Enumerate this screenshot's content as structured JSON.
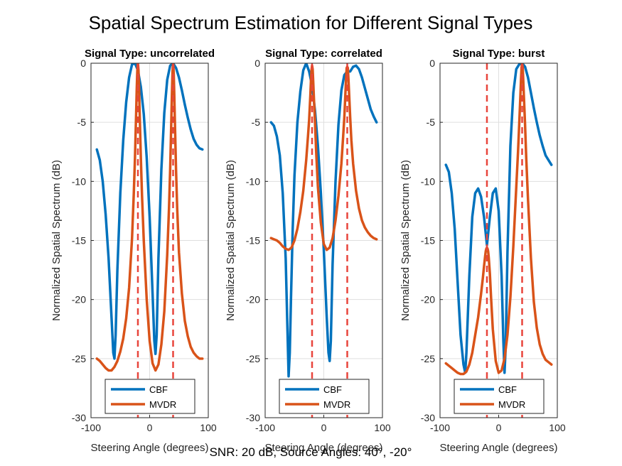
{
  "figure": {
    "title": "Spatial Spectrum Estimation for Different Signal Types",
    "footer": "SNR: 20 dB, Source Angles: 40°, -20°"
  },
  "colors": {
    "cbf": "#0072BD",
    "mvdr": "#D95319",
    "true_angle": "#E8453C",
    "grid": "#DFDFDF",
    "axis": "#262626"
  },
  "chart_data": [
    {
      "type": "line",
      "title": "Signal Type: uncorrelated",
      "xlabel": "Steering Angle (degrees)",
      "ylabel": "Normalized Spatial Spectrum (dB)",
      "xlim": [
        -100,
        100
      ],
      "ylim": [
        -30,
        0
      ],
      "xticks": [
        -100,
        0,
        100
      ],
      "yticks": [
        -30,
        -25,
        -20,
        -15,
        -10,
        -5,
        0
      ],
      "grid": true,
      "legend": "bottom",
      "true_angles": [
        -20,
        40
      ],
      "series": [
        {
          "name": "CBF",
          "color": "#0072BD",
          "x": [
            -90,
            -85,
            -80,
            -75,
            -70,
            -65,
            -62,
            -60,
            -58,
            -55,
            -50,
            -45,
            -40,
            -35,
            -30,
            -25,
            -20,
            -15,
            -10,
            -5,
            0,
            5,
            8,
            10,
            12,
            15,
            20,
            25,
            30,
            35,
            40,
            45,
            50,
            55,
            60,
            65,
            70,
            75,
            80,
            85,
            90
          ],
          "y": [
            -7.3,
            -8.2,
            -10.0,
            -12.8,
            -16.5,
            -21.5,
            -24.5,
            -25.0,
            -23.0,
            -17.5,
            -11.0,
            -6.5,
            -3.3,
            -1.2,
            -0.1,
            0,
            -0.6,
            -2.0,
            -4.3,
            -8.0,
            -13.0,
            -19.5,
            -23.5,
            -24.6,
            -23.0,
            -16.5,
            -9.0,
            -4.2,
            -1.4,
            -0.2,
            0,
            -0.4,
            -1.2,
            -2.3,
            -3.5,
            -4.6,
            -5.6,
            -6.4,
            -6.9,
            -7.2,
            -7.3
          ]
        },
        {
          "name": "MVDR",
          "color": "#D95319",
          "x": [
            -90,
            -85,
            -80,
            -75,
            -70,
            -65,
            -60,
            -55,
            -50,
            -45,
            -40,
            -35,
            -30,
            -27,
            -25,
            -23,
            -22,
            -21,
            -20,
            -19,
            -18,
            -17,
            -15,
            -13,
            -10,
            -5,
            0,
            5,
            10,
            15,
            20,
            25,
            30,
            33,
            35,
            37,
            38,
            39,
            40,
            41,
            42,
            43,
            45,
            47,
            50,
            55,
            60,
            65,
            70,
            75,
            80,
            85,
            90
          ],
          "y": [
            -25.0,
            -25.2,
            -25.5,
            -25.8,
            -26.0,
            -26.0,
            -25.7,
            -25.2,
            -24.4,
            -23.3,
            -21.6,
            -19.0,
            -14.8,
            -11.0,
            -8.0,
            -4.2,
            -2.2,
            -0.6,
            0,
            -0.6,
            -2.2,
            -4.2,
            -8.0,
            -11.2,
            -15.0,
            -20.0,
            -23.5,
            -25.4,
            -26.0,
            -25.5,
            -23.8,
            -21.0,
            -16.2,
            -12.3,
            -9.0,
            -4.8,
            -2.6,
            -0.7,
            0,
            -0.7,
            -2.6,
            -4.8,
            -9.0,
            -12.3,
            -16.0,
            -19.5,
            -21.8,
            -23.1,
            -24.0,
            -24.5,
            -24.8,
            -25.0,
            -25.0
          ]
        }
      ]
    },
    {
      "type": "line",
      "title": "Signal Type: correlated",
      "xlabel": "Steering Angle (degrees)",
      "ylabel": "Normalized Spatial Spectrum (dB)",
      "xlim": [
        -100,
        100
      ],
      "ylim": [
        -30,
        0
      ],
      "xticks": [
        -100,
        0,
        100
      ],
      "yticks": [
        -30,
        -25,
        -20,
        -15,
        -10,
        -5,
        0
      ],
      "grid": true,
      "legend": "bottom",
      "true_angles": [
        -20,
        40
      ],
      "series": [
        {
          "name": "CBF",
          "color": "#0072BD",
          "x": [
            -90,
            -85,
            -80,
            -75,
            -70,
            -65,
            -62,
            -60,
            -58,
            -56,
            -53,
            -50,
            -45,
            -40,
            -35,
            -30,
            -25,
            -20,
            -15,
            -10,
            -5,
            0,
            5,
            8,
            10,
            12,
            15,
            20,
            25,
            30,
            35,
            40,
            45,
            50,
            55,
            60,
            65,
            70,
            75,
            80,
            85,
            90
          ],
          "y": [
            -5.0,
            -5.3,
            -6.2,
            -7.8,
            -11.0,
            -16.5,
            -22.5,
            -26.5,
            -24.5,
            -20.0,
            -14.0,
            -9.5,
            -5.0,
            -2.4,
            -0.6,
            0,
            -0.7,
            -1.9,
            -4.0,
            -7.0,
            -11.0,
            -15.8,
            -21.5,
            -24.5,
            -25.2,
            -23.5,
            -17.0,
            -10.0,
            -5.2,
            -2.3,
            -1.0,
            -0.7,
            -0.7,
            -0.3,
            -0.2,
            -0.5,
            -1.2,
            -2.1,
            -3.0,
            -3.9,
            -4.5,
            -5.0
          ]
        },
        {
          "name": "MVDR",
          "color": "#D95319",
          "x": [
            -90,
            -85,
            -80,
            -75,
            -70,
            -65,
            -60,
            -55,
            -50,
            -45,
            -40,
            -35,
            -30,
            -27,
            -25,
            -23,
            -22,
            -21,
            -20,
            -19,
            -18,
            -17,
            -15,
            -13,
            -10,
            -5,
            0,
            5,
            10,
            15,
            20,
            25,
            30,
            33,
            35,
            37,
            38,
            39,
            40,
            41,
            42,
            43,
            45,
            47,
            50,
            55,
            60,
            65,
            70,
            75,
            80,
            85,
            90
          ],
          "y": [
            -14.8,
            -14.9,
            -15.0,
            -15.2,
            -15.5,
            -15.7,
            -15.8,
            -15.6,
            -15.0,
            -14.0,
            -12.6,
            -10.8,
            -8.2,
            -6.2,
            -4.8,
            -2.8,
            -1.6,
            -0.6,
            -0.2,
            -0.5,
            -1.6,
            -2.8,
            -5.0,
            -7.5,
            -10.5,
            -13.5,
            -15.3,
            -15.8,
            -15.6,
            -14.8,
            -13.3,
            -11.2,
            -8.5,
            -6.2,
            -4.6,
            -2.4,
            -1.3,
            -0.4,
            -0.3,
            -0.4,
            -1.3,
            -2.4,
            -4.6,
            -6.5,
            -8.5,
            -10.8,
            -12.3,
            -13.3,
            -13.9,
            -14.3,
            -14.6,
            -14.8,
            -14.9
          ]
        }
      ]
    },
    {
      "type": "line",
      "title": "Signal Type: burst",
      "xlabel": "Steering Angle (degrees)",
      "ylabel": "Normalized Spatial Spectrum (dB)",
      "xlim": [
        -100,
        100
      ],
      "ylim": [
        -30,
        0
      ],
      "xticks": [
        -100,
        0,
        100
      ],
      "yticks": [
        -30,
        -25,
        -20,
        -15,
        -10,
        -5,
        0
      ],
      "grid": true,
      "legend": "bottom",
      "true_angles": [
        -20,
        40
      ],
      "series": [
        {
          "name": "CBF",
          "color": "#0072BD",
          "x": [
            -90,
            -85,
            -80,
            -75,
            -70,
            -65,
            -60,
            -57,
            -55,
            -50,
            -45,
            -40,
            -35,
            -30,
            -25,
            -20,
            -15,
            -10,
            -5,
            0,
            5,
            8,
            10,
            12,
            15,
            20,
            25,
            30,
            35,
            40,
            45,
            50,
            55,
            60,
            65,
            70,
            75,
            80,
            85,
            90
          ],
          "y": [
            -8.6,
            -9.2,
            -11.0,
            -14.0,
            -18.5,
            -23.0,
            -25.5,
            -26.2,
            -24.5,
            -18.0,
            -13.0,
            -11.0,
            -10.6,
            -11.3,
            -13.0,
            -15.4,
            -13.0,
            -11.0,
            -10.6,
            -12.5,
            -18.0,
            -23.5,
            -26.2,
            -24.0,
            -16.0,
            -7.0,
            -2.5,
            -0.5,
            -0.1,
            0,
            -0.3,
            -1.2,
            -2.5,
            -3.8,
            -5.0,
            -6.1,
            -7.0,
            -7.8,
            -8.2,
            -8.6
          ]
        },
        {
          "name": "MVDR",
          "color": "#D95319",
          "x": [
            -90,
            -85,
            -80,
            -75,
            -70,
            -65,
            -60,
            -55,
            -50,
            -45,
            -40,
            -35,
            -30,
            -27,
            -25,
            -23,
            -22,
            -21,
            -20,
            -19,
            -18,
            -17,
            -15,
            -13,
            -10,
            -5,
            0,
            5,
            10,
            15,
            20,
            25,
            30,
            33,
            35,
            37,
            38,
            39,
            40,
            41,
            42,
            43,
            45,
            47,
            50,
            55,
            60,
            65,
            70,
            75,
            80,
            85,
            90
          ],
          "y": [
            -25.4,
            -25.6,
            -25.8,
            -26.0,
            -26.2,
            -26.3,
            -26.3,
            -26.1,
            -25.5,
            -24.5,
            -23.0,
            -21.5,
            -19.5,
            -18.2,
            -17.2,
            -16.3,
            -15.9,
            -15.7,
            -15.6,
            -15.7,
            -15.9,
            -16.4,
            -17.8,
            -19.8,
            -22.5,
            -25.2,
            -26.2,
            -26.0,
            -25.0,
            -23.0,
            -19.8,
            -15.5,
            -10.5,
            -7.5,
            -5.2,
            -2.8,
            -1.5,
            -0.4,
            0,
            -0.4,
            -1.5,
            -2.8,
            -5.2,
            -8.0,
            -11.5,
            -16.5,
            -20.2,
            -22.4,
            -23.8,
            -24.6,
            -25.1,
            -25.3,
            -25.5
          ]
        }
      ]
    }
  ]
}
